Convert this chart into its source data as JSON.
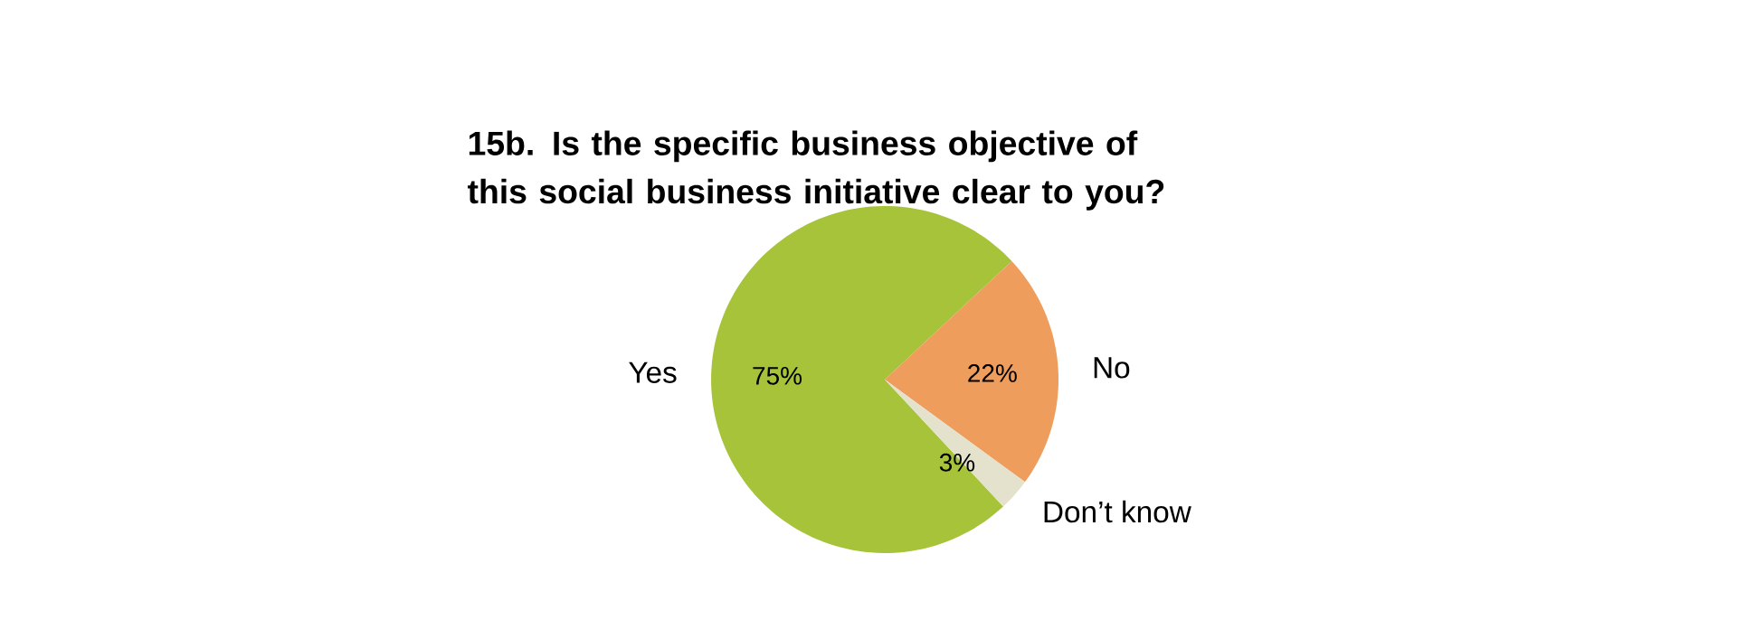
{
  "chart_data": {
    "type": "pie",
    "title": "15b. Is the specific business objective of this social business initiative clear to you?",
    "categories": [
      "Yes",
      "No",
      "Don’t know"
    ],
    "values": [
      75,
      22,
      3
    ],
    "value_labels": [
      "75%",
      "22%",
      "3%"
    ],
    "colors": [
      "#a6c33a",
      "#ee9d5c",
      "#e4e2cc"
    ]
  }
}
